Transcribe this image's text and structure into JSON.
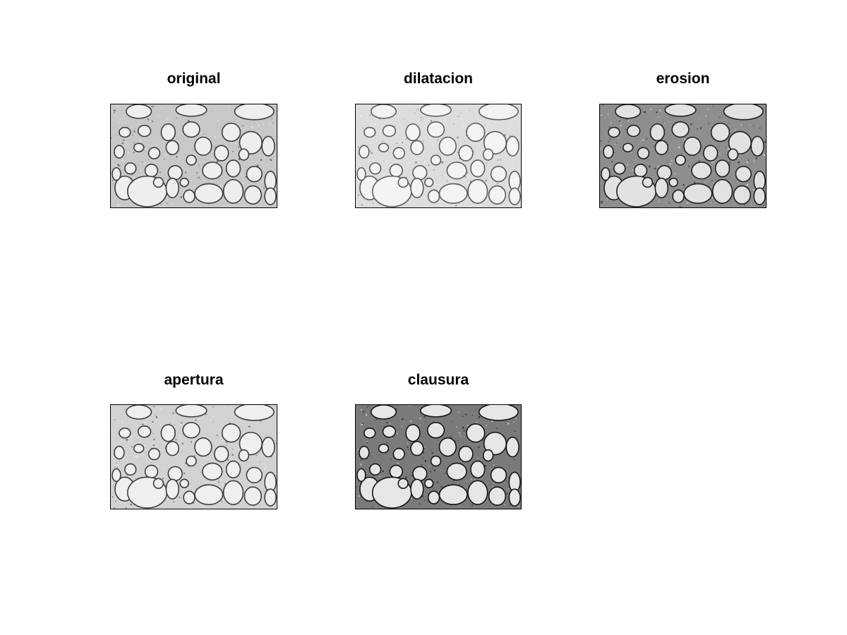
{
  "figure": {
    "background": "#ffffff",
    "subplots": [
      {
        "title": "original",
        "tone": "#c8c8c8",
        "edge": "#3a3a3a",
        "fill": "#eeeeee"
      },
      {
        "title": "dilatacion",
        "tone": "#dddddd",
        "edge": "#5a5a5a",
        "fill": "#f3f3f3"
      },
      {
        "title": "erosion",
        "tone": "#8e8e8e",
        "edge": "#1e1e1e",
        "fill": "#e2e2e2"
      },
      {
        "title": "apertura",
        "tone": "#d2d2d2",
        "edge": "#3c3c3c",
        "fill": "#efefef"
      },
      {
        "title": "clausura",
        "tone": "#7a7a7a",
        "edge": "#141414",
        "fill": "#e6e6e6"
      }
    ]
  }
}
